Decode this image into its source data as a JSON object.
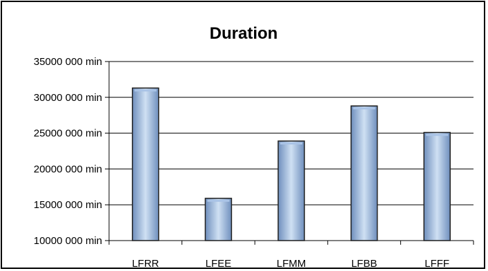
{
  "chart_data": {
    "type": "bar",
    "title": "Duration",
    "xlabel": "",
    "ylabel": "",
    "categories": [
      "LFRR",
      "LFEE",
      "LFMM",
      "LFBB",
      "LFFF"
    ],
    "values": [
      31300000,
      15900000,
      23900000,
      28800000,
      25100000
    ],
    "ylim": [
      10000000,
      35000000
    ],
    "yticks": [
      10000000,
      15000000,
      20000000,
      25000000,
      30000000,
      35000000
    ],
    "ytick_labels": [
      "10000 000 min",
      "15000 000 min",
      "20000 000 min",
      "25000 000 min",
      "30000 000 min",
      "35000 000 min"
    ],
    "grid": true,
    "legend": "none",
    "colors": {
      "bar_light": "#cfe0f3",
      "bar_mid": "#a9c3e6",
      "bar_dark": "#6f8fbd",
      "bar_outline": "#1f1f1f",
      "grid": "#000000"
    }
  }
}
